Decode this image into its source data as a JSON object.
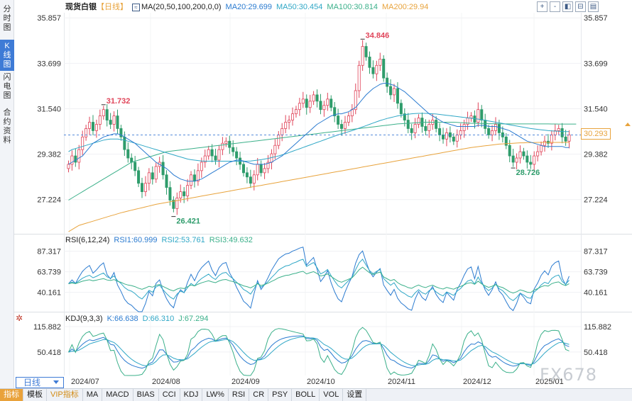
{
  "left_tabs": [
    {
      "label": "分\n时\n图",
      "active": false
    },
    {
      "label": "K\n线\n图",
      "active": true
    },
    {
      "label": "闪\n电\n图",
      "active": false
    },
    {
      "label": "合\n约\n资\n料",
      "active": false
    }
  ],
  "header": {
    "instrument": "现货白银",
    "period_tag": "【日线】",
    "ma_label": "MA(20,50,100,200,0,0)",
    "ma20": "MA20:29.699",
    "ma50": "MA50:30.454",
    "ma100": "MA100:30.814",
    "ma200": "MA200:29.94"
  },
  "rsi_header": {
    "name": "RSI(6,12,24)",
    "rsi1": "RSI1:60.999",
    "rsi2": "RSI2:53.761",
    "rsi3": "RSI3:49.632"
  },
  "kdj_header": {
    "name": "KDJ(9,3,3)",
    "k": "K:66.638",
    "d": "D:66.310",
    "j": "J:67.294"
  },
  "price_tag": "30.293",
  "period_selector": "日线",
  "watermark": "FX678",
  "top_tools": [
    "+",
    "-",
    "◧",
    "⊟",
    "▤"
  ],
  "bottom_toolbar": [
    {
      "label": "指标",
      "active": true
    },
    {
      "label": "模板",
      "active": false
    },
    {
      "label": "VIP指标",
      "active": false,
      "vip": true
    },
    {
      "label": "MA",
      "active": false
    },
    {
      "label": "MACD",
      "active": false
    },
    {
      "label": "BIAS",
      "active": false
    },
    {
      "label": "CCI",
      "active": false
    },
    {
      "label": "KDJ",
      "active": false
    },
    {
      "label": "LW%",
      "active": false
    },
    {
      "label": "RSI",
      "active": false
    },
    {
      "label": "CR",
      "active": false
    },
    {
      "label": "PSY",
      "active": false
    },
    {
      "label": "BOLL",
      "active": false
    },
    {
      "label": "VOL",
      "active": false
    },
    {
      "label": "设置",
      "active": false
    }
  ],
  "colors": {
    "up": "#e0455a",
    "down": "#2e9c6b",
    "ma20": "#2b7bd0",
    "ma50": "#2fa7c6",
    "ma100": "#3bb08a",
    "ma200": "#e8a33c",
    "rsi1": "#2b7bd0",
    "rsi2": "#2fa7c6",
    "rsi3": "#3bb08a"
  },
  "chart_data": {
    "type": "candlestick",
    "price_axis": {
      "ticks": [
        "35.857",
        "33.699",
        "31.540",
        "29.382",
        "27.224"
      ],
      "range": [
        25.6,
        36.1
      ]
    },
    "x_labels": [
      "2024/07",
      "2024/08",
      "2024/09",
      "2024/10",
      "2024/11",
      "2024/12",
      "2025/01"
    ],
    "annotations": [
      {
        "text": "31.732",
        "index": 10,
        "price": 31.732,
        "kind": "high"
      },
      {
        "text": "26.421",
        "index": 30,
        "price": 26.421,
        "kind": "low"
      },
      {
        "text": "34.846",
        "index": 84,
        "price": 34.846,
        "kind": "high"
      },
      {
        "text": "28.726",
        "index": 127,
        "price": 28.726,
        "kind": "low"
      }
    ],
    "last_price": 30.293,
    "closes": [
      28.9,
      29.3,
      29.0,
      29.6,
      30.2,
      30.6,
      30.9,
      30.5,
      30.8,
      31.2,
      31.5,
      31.0,
      30.8,
      31.2,
      30.6,
      30.2,
      29.6,
      29.2,
      29.0,
      28.6,
      28.0,
      27.6,
      28.0,
      28.5,
      28.2,
      28.8,
      29.0,
      28.4,
      27.8,
      27.2,
      26.8,
      27.3,
      27.6,
      27.4,
      27.9,
      28.4,
      28.1,
      28.6,
      29.0,
      29.3,
      29.6,
      29.3,
      29.1,
      29.6,
      29.9,
      30.0,
      29.7,
      29.5,
      29.2,
      28.9,
      28.5,
      28.3,
      28.0,
      28.4,
      28.9,
      28.5,
      28.7,
      29.0,
      29.4,
      29.8,
      30.3,
      30.6,
      30.9,
      31.0,
      31.3,
      31.5,
      31.8,
      32.0,
      31.6,
      31.9,
      32.2,
      31.9,
      31.5,
      31.7,
      32.0,
      31.6,
      31.2,
      30.8,
      30.6,
      30.9,
      31.2,
      31.5,
      32.4,
      33.6,
      34.5,
      34.0,
      33.5,
      33.2,
      33.6,
      33.9,
      33.0,
      32.6,
      32.2,
      32.5,
      31.8,
      31.3,
      31.0,
      30.6,
      30.4,
      30.8,
      31.1,
      30.7,
      30.5,
      30.8,
      31.0,
      30.6,
      30.3,
      30.1,
      30.4,
      30.2,
      30.0,
      30.3,
      30.5,
      30.8,
      31.1,
      31.2,
      30.9,
      31.5,
      31.0,
      30.6,
      30.3,
      30.5,
      30.8,
      30.4,
      30.2,
      29.8,
      29.3,
      29.0,
      29.2,
      29.5,
      29.3,
      29.0,
      28.9,
      29.3,
      29.5,
      29.8,
      30.0,
      29.9,
      30.3,
      30.5,
      30.6,
      30.2,
      30.0,
      30.3
    ],
    "ma20": [
      28.9,
      29.0,
      29.1,
      29.2,
      29.3,
      29.5,
      29.7,
      29.9,
      30.0,
      30.1,
      30.2,
      30.25,
      30.3,
      30.35,
      30.35,
      30.3,
      30.2,
      30.1,
      30.0,
      29.9,
      29.75,
      29.6,
      29.45,
      29.3,
      29.15,
      29.0,
      28.9,
      28.8,
      28.7,
      28.55,
      28.4,
      28.3,
      28.2,
      28.15,
      28.1,
      28.1,
      28.1,
      28.15,
      28.2,
      28.3,
      28.4,
      28.5,
      28.6,
      28.7,
      28.8,
      28.9,
      29.0,
      29.05,
      29.1,
      29.1,
      29.05,
      29.0,
      28.95,
      28.9,
      28.9,
      28.9,
      28.9,
      28.95,
      29.0,
      29.1,
      29.2,
      29.3,
      29.45,
      29.6,
      29.75,
      29.9,
      30.05,
      30.2,
      30.35,
      30.5,
      30.65,
      30.8,
      30.9,
      31.0,
      31.1,
      31.2,
      31.25,
      31.3,
      31.3,
      31.35,
      31.4,
      31.5,
      31.6,
      31.8,
      32.0,
      32.2,
      32.35,
      32.5,
      32.6,
      32.7,
      32.75,
      32.75,
      32.7,
      32.65,
      32.55,
      32.45,
      32.35,
      32.2,
      32.05,
      31.9,
      31.75,
      31.6,
      31.45,
      31.3,
      31.2,
      31.1,
      31.0,
      30.9,
      30.85,
      30.8,
      30.75,
      30.7,
      30.7,
      30.7,
      30.7,
      30.7,
      30.7,
      30.75,
      30.75,
      30.75,
      30.7,
      30.7,
      30.7,
      30.65,
      30.6,
      30.55,
      30.5,
      30.4,
      30.3,
      30.2,
      30.1,
      30.0,
      29.95,
      29.9,
      29.85,
      29.8,
      29.75,
      29.75,
      29.75,
      29.75,
      29.75,
      29.75,
      29.7,
      29.7
    ],
    "ma50": [
      29.5,
      29.6,
      29.65,
      29.7,
      29.75,
      29.8,
      29.85,
      29.9,
      29.95,
      30.0,
      30.05,
      30.08,
      30.1,
      30.1,
      30.1,
      30.08,
      30.05,
      30.0,
      29.95,
      29.9,
      29.85,
      29.8,
      29.75,
      29.7,
      29.65,
      29.6,
      29.55,
      29.5,
      29.45,
      29.4,
      29.35,
      29.3,
      29.25,
      29.2,
      29.15,
      29.12,
      29.1,
      29.08,
      29.06,
      29.05,
      29.05,
      29.05,
      29.05,
      29.05,
      29.05,
      29.05,
      29.05,
      29.05,
      29.05,
      29.05,
      29.05,
      29.05,
      29.06,
      29.08,
      29.1,
      29.12,
      29.15,
      29.18,
      29.22,
      29.26,
      29.3,
      29.35,
      29.4,
      29.46,
      29.52,
      29.58,
      29.64,
      29.7,
      29.76,
      29.82,
      29.88,
      29.94,
      30.0,
      30.06,
      30.12,
      30.18,
      30.24,
      30.3,
      30.35,
      30.4,
      30.45,
      30.5,
      30.56,
      30.62,
      30.68,
      30.74,
      30.8,
      30.86,
      30.92,
      30.98,
      31.03,
      31.08,
      31.12,
      31.16,
      31.2,
      31.23,
      31.26,
      31.28,
      31.3,
      31.31,
      31.32,
      31.32,
      31.32,
      31.31,
      31.3,
      31.29,
      31.27,
      31.25,
      31.23,
      31.21,
      31.19,
      31.17,
      31.15,
      31.13,
      31.11,
      31.09,
      31.07,
      31.05,
      31.02,
      30.99,
      30.96,
      30.93,
      30.9,
      30.87,
      30.84,
      30.81,
      30.78,
      30.75,
      30.72,
      30.69,
      30.66,
      30.63,
      30.6,
      30.58,
      30.56,
      30.54,
      30.52,
      30.5,
      30.49,
      30.48,
      30.47,
      30.46,
      30.455,
      30.454
    ],
    "ma100": [
      27.2,
      27.3,
      27.4,
      27.5,
      27.6,
      27.7,
      27.8,
      27.9,
      28.0,
      28.1,
      28.2,
      28.3,
      28.4,
      28.5,
      28.6,
      28.7,
      28.8,
      28.9,
      29.0,
      29.05,
      29.1,
      29.15,
      29.2,
      29.25,
      29.3,
      29.35,
      29.4,
      29.45,
      29.5,
      29.52,
      29.54,
      29.56,
      29.58,
      29.6,
      29.62,
      29.64,
      29.66,
      29.68,
      29.7,
      29.72,
      29.74,
      29.76,
      29.78,
      29.8,
      29.82,
      29.84,
      29.86,
      29.88,
      29.9,
      29.92,
      29.94,
      29.96,
      29.98,
      30.0,
      30.02,
      30.04,
      30.06,
      30.08,
      30.1,
      30.12,
      30.14,
      30.16,
      30.18,
      30.2,
      30.22,
      30.24,
      30.26,
      30.28,
      30.3,
      30.32,
      30.34,
      30.36,
      30.38,
      30.4,
      30.42,
      30.44,
      30.46,
      30.48,
      30.5,
      30.52,
      30.54,
      30.56,
      30.58,
      30.6,
      30.62,
      30.64,
      30.66,
      30.68,
      30.7,
      30.72,
      30.74,
      30.76,
      30.78,
      30.8,
      30.82,
      30.83,
      30.84,
      30.85,
      30.86,
      30.87,
      30.88,
      30.89,
      30.9,
      30.9,
      30.9,
      30.9,
      30.9,
      30.9,
      30.9,
      30.9,
      30.9,
      30.89,
      30.88,
      30.87,
      30.86,
      30.85,
      30.84,
      30.84,
      30.84,
      30.84,
      30.83,
      30.83,
      30.83,
      30.82,
      30.82,
      30.82,
      30.82,
      30.82,
      30.82,
      30.82,
      30.82,
      30.82,
      30.82,
      30.82,
      30.82,
      30.82,
      30.82,
      30.82,
      30.815,
      30.815,
      30.814,
      30.814,
      30.814,
      30.814,
      30.814,
      30.814
    ],
    "ma200": [
      25.7,
      25.8,
      25.9,
      26.0,
      26.05,
      26.1,
      26.15,
      26.2,
      26.25,
      26.3,
      26.35,
      26.4,
      26.45,
      26.5,
      26.55,
      26.6,
      26.64,
      26.68,
      26.72,
      26.76,
      26.8,
      26.84,
      26.88,
      26.92,
      26.96,
      27.0,
      27.03,
      27.06,
      27.09,
      27.12,
      27.15,
      27.18,
      27.21,
      27.24,
      27.27,
      27.3,
      27.33,
      27.36,
      27.39,
      27.42,
      27.45,
      27.48,
      27.51,
      27.54,
      27.57,
      27.6,
      27.63,
      27.66,
      27.69,
      27.72,
      27.75,
      27.78,
      27.81,
      27.84,
      27.87,
      27.9,
      27.93,
      27.96,
      27.99,
      28.02,
      28.05,
      28.08,
      28.11,
      28.14,
      28.17,
      28.2,
      28.23,
      28.26,
      28.29,
      28.32,
      28.35,
      28.38,
      28.41,
      28.44,
      28.47,
      28.5,
      28.53,
      28.56,
      28.59,
      28.62,
      28.65,
      28.68,
      28.71,
      28.74,
      28.77,
      28.8,
      28.83,
      28.86,
      28.89,
      28.92,
      28.95,
      28.98,
      29.01,
      29.04,
      29.07,
      29.1,
      29.13,
      29.16,
      29.19,
      29.22,
      29.25,
      29.28,
      29.31,
      29.34,
      29.37,
      29.4,
      29.43,
      29.46,
      29.49,
      29.52,
      29.55,
      29.58,
      29.61,
      29.64,
      29.67,
      29.7,
      29.72,
      29.74,
      29.76,
      29.78,
      29.8,
      29.82,
      29.84,
      29.86,
      29.87,
      29.88,
      29.89,
      29.9,
      29.91,
      29.92,
      29.92,
      29.93,
      29.93,
      29.93,
      29.94,
      29.94,
      29.94,
      29.94,
      29.94,
      29.94,
      29.94,
      29.94,
      29.94,
      29.94
    ],
    "rsi_axis": {
      "ticks": [
        "87.317",
        "63.739",
        "40.161"
      ],
      "range": [
        18,
        95
      ]
    },
    "kdj_axis": {
      "ticks": [
        "115.882",
        "50.418"
      ],
      "range": [
        -10,
        125
      ]
    }
  }
}
